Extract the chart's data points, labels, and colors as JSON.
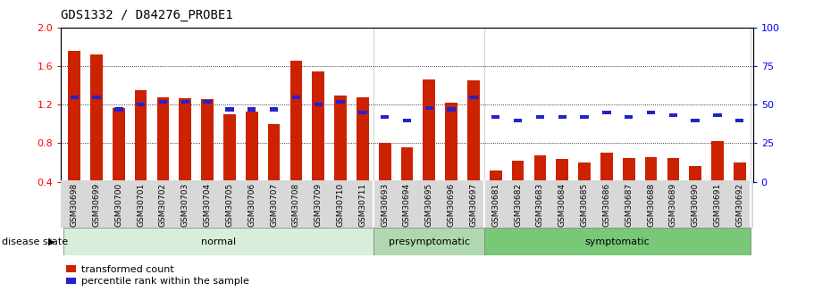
{
  "title": "GDS1332 / D84276_PROBE1",
  "categories": [
    "GSM30698",
    "GSM30699",
    "GSM30700",
    "GSM30701",
    "GSM30702",
    "GSM30703",
    "GSM30704",
    "GSM30705",
    "GSM30706",
    "GSM30707",
    "GSM30708",
    "GSM30709",
    "GSM30710",
    "GSM30711",
    "GSM30693",
    "GSM30694",
    "GSM30695",
    "GSM30696",
    "GSM30697",
    "GSM30681",
    "GSM30682",
    "GSM30683",
    "GSM30684",
    "GSM30685",
    "GSM30686",
    "GSM30687",
    "GSM30688",
    "GSM30689",
    "GSM30690",
    "GSM30691",
    "GSM30692"
  ],
  "bar_values": [
    1.76,
    1.72,
    1.17,
    1.35,
    1.28,
    1.27,
    1.26,
    1.1,
    1.13,
    1.0,
    1.66,
    1.55,
    1.3,
    1.28,
    0.8,
    0.76,
    1.46,
    1.22,
    1.45,
    0.52,
    0.62,
    0.67,
    0.64,
    0.6,
    0.7,
    0.65,
    0.66,
    0.65,
    0.56,
    0.82,
    0.6
  ],
  "blue_pct": [
    55,
    55,
    47,
    50,
    52,
    52,
    52,
    47,
    47,
    47,
    55,
    50,
    52,
    45,
    42,
    40,
    48,
    47,
    55,
    42,
    40,
    42,
    42,
    42,
    45,
    42,
    45,
    43,
    40,
    43,
    40
  ],
  "groups": [
    {
      "label": "normal",
      "start": 0,
      "end": 13,
      "color": "#d8eeda"
    },
    {
      "label": "presymptomatic",
      "start": 14,
      "end": 18,
      "color": "#b0d8b0"
    },
    {
      "label": "symptomatic",
      "start": 19,
      "end": 30,
      "color": "#78c878"
    }
  ],
  "ylim_left": [
    0.4,
    2.0
  ],
  "ylim_right": [
    0,
    100
  ],
  "yticks_left": [
    0.4,
    0.8,
    1.2,
    1.6,
    2.0
  ],
  "yticks_right": [
    0,
    25,
    50,
    75,
    100
  ],
  "bar_color": "#cc2200",
  "blue_color": "#2222cc",
  "grid_vals": [
    0.8,
    1.2,
    1.6
  ],
  "disease_state_label": "disease state"
}
